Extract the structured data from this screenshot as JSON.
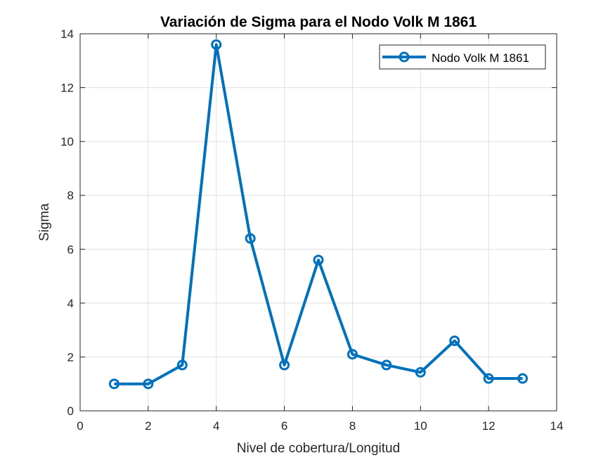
{
  "chart_data": {
    "type": "line",
    "title": "Variación de Sigma para el Nodo Volk M 1861",
    "xlabel": "Nivel de cobertura/Longitud",
    "ylabel": "Sigma",
    "xlim": [
      0,
      14
    ],
    "ylim": [
      0,
      14
    ],
    "xticks": [
      0,
      2,
      4,
      6,
      8,
      10,
      12,
      14
    ],
    "yticks": [
      0,
      2,
      4,
      6,
      8,
      10,
      12,
      14
    ],
    "grid": true,
    "legend_position": "top-right",
    "series": [
      {
        "name": "Nodo Volk M 1861",
        "color": "#0072BD",
        "marker": "circle",
        "x": [
          1,
          2,
          3,
          4,
          5,
          6,
          7,
          8,
          9,
          10,
          11,
          12,
          13
        ],
        "y": [
          1.0,
          1.0,
          1.7,
          13.6,
          6.4,
          1.7,
          5.6,
          2.1,
          1.7,
          1.43,
          2.6,
          1.2,
          1.2
        ]
      }
    ]
  }
}
